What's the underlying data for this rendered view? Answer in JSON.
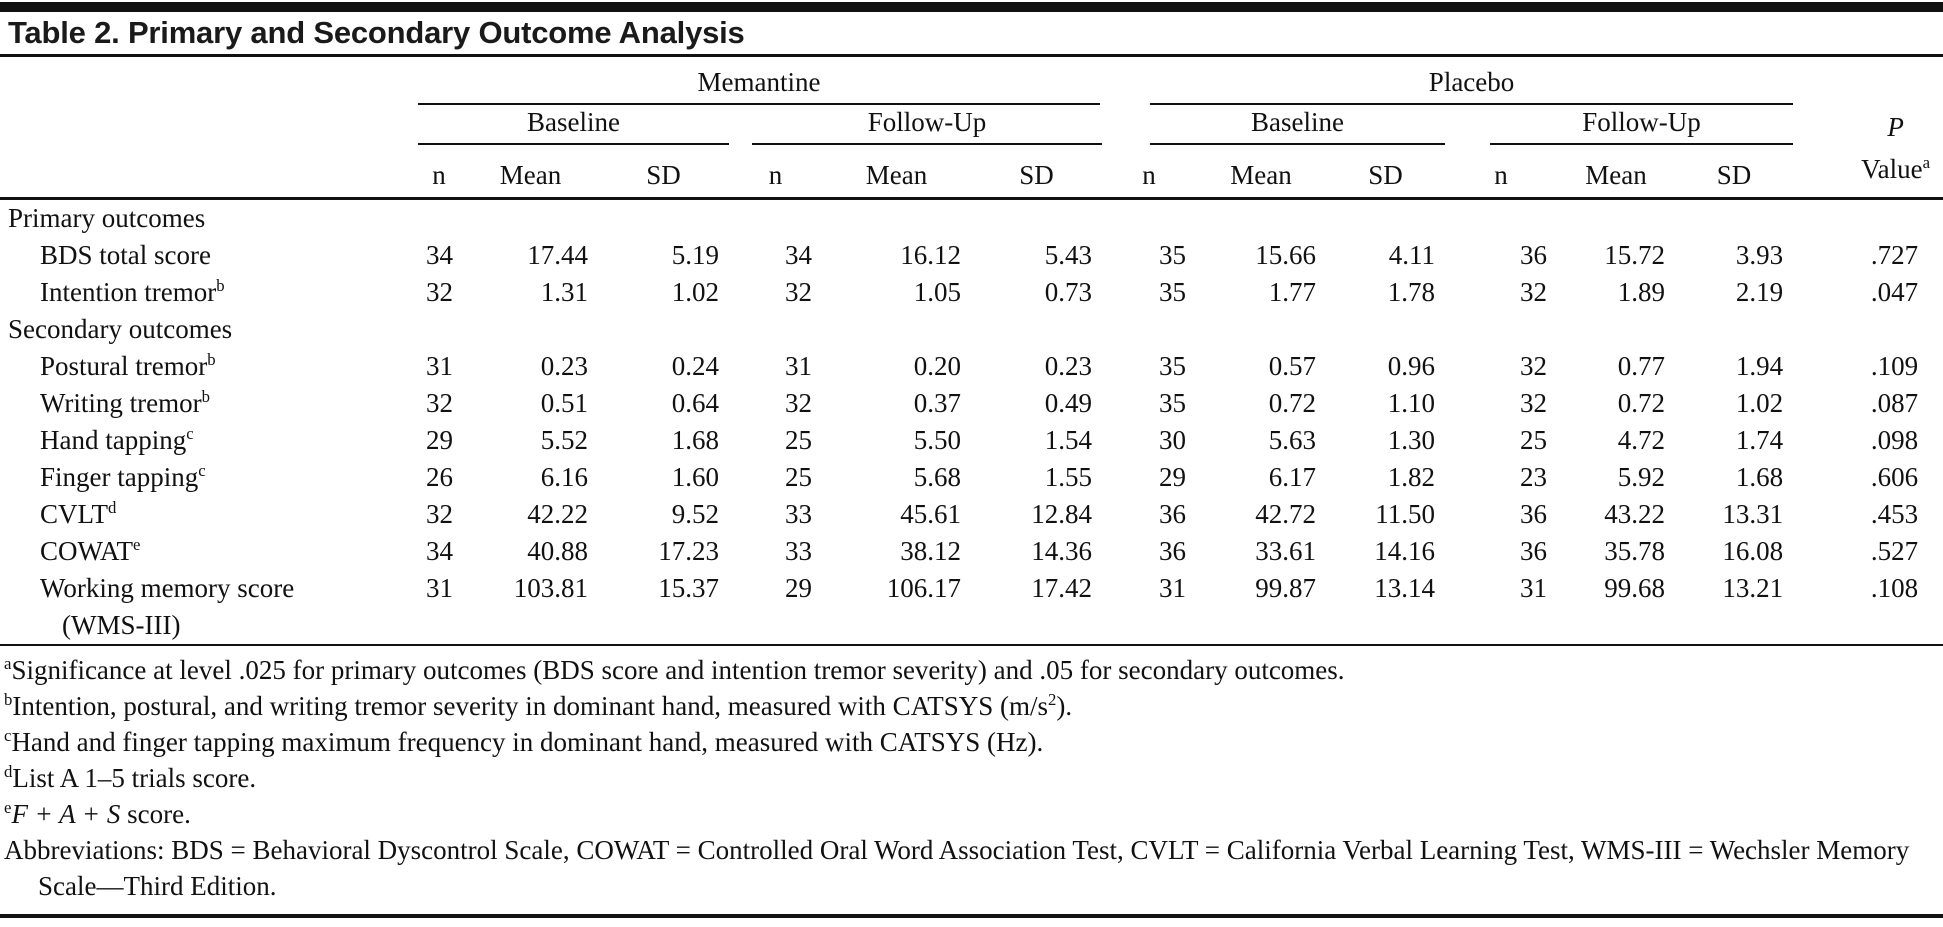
{
  "title": "Table 2. Primary and Secondary Outcome Analysis",
  "table": {
    "groups": [
      {
        "label": "Memantine",
        "subgroups": [
          "Baseline",
          "Follow-Up"
        ]
      },
      {
        "label": "Placebo",
        "subgroups": [
          "Baseline",
          "Follow-Up"
        ]
      }
    ],
    "stat_headers": [
      "n",
      "Mean",
      "SD"
    ],
    "p_header": {
      "line1": "P",
      "line2": "Value",
      "sup": "a"
    },
    "rows": [
      {
        "type": "section",
        "label": "Primary outcomes"
      },
      {
        "type": "data",
        "label": "BDS total score",
        "sup": "",
        "values": [
          "34",
          "17.44",
          "5.19",
          "34",
          "16.12",
          "5.43",
          "35",
          "15.66",
          "4.11",
          "36",
          "15.72",
          "3.93",
          ".727"
        ]
      },
      {
        "type": "data",
        "label": "Intention tremor",
        "sup": "b",
        "values": [
          "32",
          "1.31",
          "1.02",
          "32",
          "1.05",
          "0.73",
          "35",
          "1.77",
          "1.78",
          "32",
          "1.89",
          "2.19",
          ".047"
        ]
      },
      {
        "type": "section",
        "label": "Secondary outcomes"
      },
      {
        "type": "data",
        "label": "Postural tremor",
        "sup": "b",
        "values": [
          "31",
          "0.23",
          "0.24",
          "31",
          "0.20",
          "0.23",
          "35",
          "0.57",
          "0.96",
          "32",
          "0.77",
          "1.94",
          ".109"
        ]
      },
      {
        "type": "data",
        "label": "Writing tremor",
        "sup": "b",
        "values": [
          "32",
          "0.51",
          "0.64",
          "32",
          "0.37",
          "0.49",
          "35",
          "0.72",
          "1.10",
          "32",
          "0.72",
          "1.02",
          ".087"
        ]
      },
      {
        "type": "data",
        "label": "Hand tapping",
        "sup": "c",
        "values": [
          "29",
          "5.52",
          "1.68",
          "25",
          "5.50",
          "1.54",
          "30",
          "5.63",
          "1.30",
          "25",
          "4.72",
          "1.74",
          ".098"
        ]
      },
      {
        "type": "data",
        "label": "Finger tapping",
        "sup": "c",
        "values": [
          "26",
          "6.16",
          "1.60",
          "25",
          "5.68",
          "1.55",
          "29",
          "6.17",
          "1.82",
          "23",
          "5.92",
          "1.68",
          ".606"
        ]
      },
      {
        "type": "data",
        "label": "CVLT",
        "sup": "d",
        "values": [
          "32",
          "42.22",
          "9.52",
          "33",
          "45.61",
          "12.84",
          "36",
          "42.72",
          "11.50",
          "36",
          "43.22",
          "13.31",
          ".453"
        ]
      },
      {
        "type": "data",
        "label": "COWAT",
        "sup": "e",
        "values": [
          "34",
          "40.88",
          "17.23",
          "33",
          "38.12",
          "14.36",
          "36",
          "33.61",
          "14.16",
          "36",
          "35.78",
          "16.08",
          ".527"
        ]
      },
      {
        "type": "data",
        "label": "Working memory score",
        "label2": "(WMS-III)",
        "sup": "",
        "values": [
          "31",
          "103.81",
          "15.37",
          "29",
          "106.17",
          "17.42",
          "31",
          "99.87",
          "13.14",
          "31",
          "99.68",
          "13.21",
          ".108"
        ]
      }
    ]
  },
  "footnotes": {
    "a": {
      "marker": "a",
      "text": "Significance at level .025 for primary outcomes (BDS score and intention tremor severity) and .05 for secondary outcomes."
    },
    "b": {
      "marker": "b",
      "text": "Intention, postural, and writing tremor severity in dominant hand, measured with CATSYS (m/s",
      "sup": "2",
      "after": ")."
    },
    "c": {
      "marker": "c",
      "text": "Hand and finger tapping maximum frequency in dominant hand, measured with CATSYS (Hz)."
    },
    "d": {
      "marker": "d",
      "text": "List A 1–5 trials score."
    },
    "e": {
      "marker": "e",
      "italic": "F + A + S",
      "after": " score."
    },
    "abbrev": {
      "text": "Abbreviations: BDS = Behavioral Dyscontrol Scale, COWAT = Controlled Oral Word Association Test, CVLT = California Verbal Learning Test, WMS-III = Wechsler Memory Scale—Third Edition."
    }
  }
}
